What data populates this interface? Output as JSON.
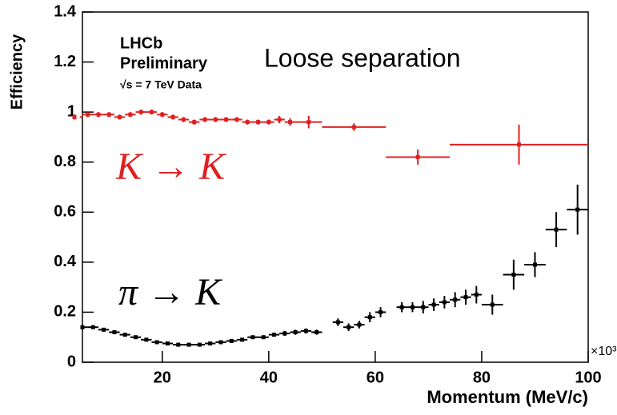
{
  "chart_data": {
    "type": "errorbar",
    "title": "Loose separation",
    "annotations": [
      "LHCb",
      "Preliminary",
      "√s = 7 TeV Data"
    ],
    "x_label": "Momentum (MeV/c)",
    "x_multiplier": "×10³",
    "y_label": "Efficiency",
    "xlim": [
      5,
      100
    ],
    "ylim": [
      0,
      1.4
    ],
    "xticks": [
      20,
      40,
      60,
      80,
      100
    ],
    "yticks": [
      0,
      0.2,
      0.4,
      0.6,
      0.8,
      1,
      1.2,
      1.4
    ],
    "series": [
      {
        "name": "K → K",
        "color": "#e02020",
        "x": [
          3.5,
          6,
          8,
          10,
          12,
          14,
          16,
          18,
          20,
          22,
          24,
          26,
          28,
          30,
          32,
          34,
          36,
          38,
          40,
          42,
          44,
          47.5,
          56,
          68,
          87
        ],
        "values": [
          0.98,
          0.99,
          0.99,
          0.99,
          0.98,
          0.99,
          1.0,
          1.0,
          0.99,
          0.98,
          0.97,
          0.96,
          0.97,
          0.97,
          0.97,
          0.97,
          0.96,
          0.96,
          0.96,
          0.97,
          0.96,
          0.96,
          0.94,
          0.82,
          0.87
        ],
        "xerr": [
          1,
          1,
          1,
          1,
          1,
          1,
          1,
          1,
          1,
          1,
          1,
          1,
          1,
          1,
          1,
          1,
          1,
          1,
          1,
          1,
          1,
          2.5,
          6,
          6,
          13
        ],
        "yerr": [
          0.01,
          0.01,
          0.01,
          0.01,
          0.01,
          0.01,
          0.01,
          0.01,
          0.01,
          0.01,
          0.01,
          0.01,
          0.01,
          0.01,
          0.01,
          0.01,
          0.01,
          0.01,
          0.01,
          0.015,
          0.015,
          0.025,
          0.015,
          0.03,
          0.08
        ]
      },
      {
        "name": "π → K",
        "color": "#000000",
        "x": [
          5,
          7,
          9,
          11,
          13,
          15,
          17,
          19,
          21,
          23,
          25,
          27,
          29,
          31,
          33,
          35,
          37,
          39,
          41,
          43,
          45,
          47,
          49,
          53,
          55,
          57,
          59,
          61,
          65,
          67,
          69,
          71,
          73,
          75,
          77,
          79,
          82,
          86,
          90,
          94,
          98
        ],
        "values": [
          0.14,
          0.14,
          0.13,
          0.12,
          0.11,
          0.1,
          0.09,
          0.08,
          0.075,
          0.07,
          0.07,
          0.07,
          0.075,
          0.08,
          0.085,
          0.09,
          0.1,
          0.1,
          0.11,
          0.115,
          0.12,
          0.125,
          0.12,
          0.16,
          0.14,
          0.15,
          0.18,
          0.2,
          0.22,
          0.22,
          0.22,
          0.23,
          0.24,
          0.25,
          0.26,
          0.27,
          0.23,
          0.35,
          0.39,
          0.53,
          0.61
        ],
        "xerr": [
          1,
          1,
          1,
          1,
          1,
          1,
          1,
          1,
          1,
          1,
          1,
          1,
          1,
          1,
          1,
          1,
          1,
          1,
          1,
          1,
          1,
          1,
          1,
          1,
          1,
          1,
          1,
          1,
          1,
          1,
          1,
          1,
          1,
          1,
          1,
          1,
          2,
          2,
          2,
          2,
          2
        ],
        "yerr": [
          0.005,
          0.005,
          0.005,
          0.005,
          0.005,
          0.005,
          0.005,
          0.005,
          0.005,
          0.005,
          0.005,
          0.005,
          0.005,
          0.005,
          0.005,
          0.005,
          0.005,
          0.005,
          0.005,
          0.01,
          0.01,
          0.01,
          0.01,
          0.015,
          0.015,
          0.015,
          0.02,
          0.02,
          0.02,
          0.02,
          0.025,
          0.025,
          0.025,
          0.03,
          0.03,
          0.035,
          0.04,
          0.06,
          0.05,
          0.07,
          0.1
        ]
      }
    ]
  }
}
